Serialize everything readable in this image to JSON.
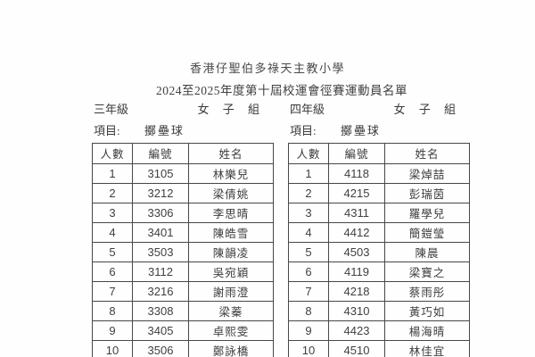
{
  "document": {
    "school_title": "香港仔聖伯多祿天主教小學",
    "event_title": "2024至2025年度第十屆校運會徑賽運動員名單"
  },
  "sections": [
    {
      "grade": "三年級",
      "group": "女 子 組",
      "item_label": "項目:",
      "item_value": "擲壘球",
      "table": {
        "headers": [
          "人數",
          "編號",
          "姓名"
        ],
        "rows": [
          [
            "1",
            "3105",
            "林樂兒"
          ],
          [
            "2",
            "3212",
            "梁倩姚"
          ],
          [
            "3",
            "3306",
            "李思晴"
          ],
          [
            "4",
            "3401",
            "陳皓雪"
          ],
          [
            "5",
            "3503",
            "陳韻凌"
          ],
          [
            "6",
            "3112",
            "吳宛穎"
          ],
          [
            "7",
            "3216",
            "謝雨澄"
          ],
          [
            "8",
            "3308",
            "梁蓁"
          ],
          [
            "9",
            "3405",
            "卓熙雯"
          ],
          [
            "10",
            "3506",
            "鄭詠橋"
          ]
        ]
      }
    },
    {
      "grade": "四年級",
      "group": "女 子 組",
      "item_label": "項目:",
      "item_value": "擲壘球",
      "table": {
        "headers": [
          "人數",
          "編號",
          "姓名"
        ],
        "rows": [
          [
            "1",
            "4118",
            "梁焯喆"
          ],
          [
            "2",
            "4215",
            "彭瑞茵"
          ],
          [
            "3",
            "4311",
            "羅學兒"
          ],
          [
            "4",
            "4412",
            "簡鎧瑩"
          ],
          [
            "5",
            "4503",
            "陳晨"
          ],
          [
            "6",
            "4119",
            "梁寶之"
          ],
          [
            "7",
            "4218",
            "蔡雨彤"
          ],
          [
            "8",
            "4310",
            "黃巧如"
          ],
          [
            "9",
            "4423",
            "楊海晴"
          ],
          [
            "10",
            "4510",
            "林佳宜"
          ]
        ]
      }
    }
  ]
}
